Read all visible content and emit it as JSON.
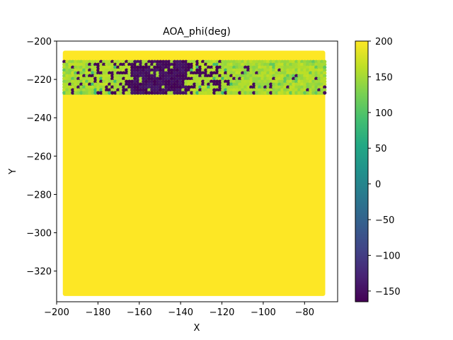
{
  "chart_data": {
    "type": "heatmap",
    "subtype": "hexbin-scatter",
    "title": "AOA_phi(deg)",
    "xlabel": "X",
    "ylabel": "Y",
    "xlim": [
      -200,
      -64
    ],
    "ylim": [
      -336,
      -200
    ],
    "x_ticks": [
      -200,
      -180,
      -160,
      -140,
      -120,
      -100,
      -80
    ],
    "x_tick_labels": [
      "−200",
      "−180",
      "−160",
      "−140",
      "−120",
      "−100",
      "−80"
    ],
    "y_ticks": [
      -200,
      -220,
      -240,
      -260,
      -280,
      -300,
      -320
    ],
    "y_tick_labels": [
      "−200",
      "−220",
      "−240",
      "−260",
      "−280",
      "−300",
      "−320"
    ],
    "grid": false,
    "data_extent": {
      "x": [
        -197,
        -70
      ],
      "y": [
        -333,
        -205
      ]
    },
    "fill_value": 200,
    "top_band": {
      "y_range": [
        -228,
        -210
      ],
      "base_value": 150,
      "low_cluster_x": [
        -175,
        -125
      ],
      "low_cluster_y": [
        -228,
        -210
      ],
      "low_value": -165
    },
    "colorbar": {
      "colormap": "viridis",
      "vmin": -165,
      "vmax": 200,
      "ticks": [
        200,
        150,
        100,
        50,
        0,
        -50,
        -100,
        -150
      ],
      "tick_labels": [
        "200",
        "150",
        "100",
        "50",
        "0",
        "−50",
        "−100",
        "−150"
      ]
    }
  }
}
